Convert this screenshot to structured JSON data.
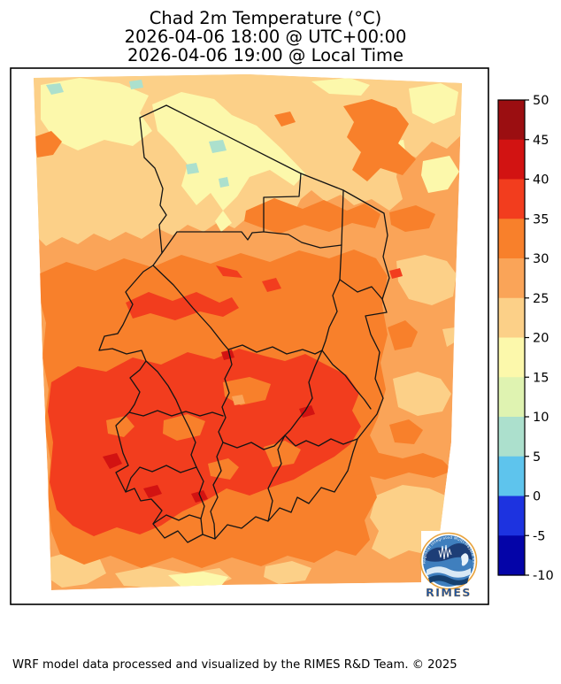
{
  "title": {
    "line1": "Chad 2m Temperature (°C)",
    "line2": "2026-04-06 18:00 @ UTC+00:00",
    "line3": "2026-04-06 19:00 @ Local Time"
  },
  "colorbar": {
    "ticks": [
      "50",
      "45",
      "40",
      "35",
      "30",
      "25",
      "20",
      "15",
      "10",
      "5",
      "0",
      "-5",
      "-10"
    ],
    "segments": [
      {
        "range": "45 to 50",
        "color": "#9B0E11"
      },
      {
        "range": "40 to 45",
        "color": "#D21312"
      },
      {
        "range": "35 to 40",
        "color": "#F23D1E"
      },
      {
        "range": "30 to 35",
        "color": "#F8802B"
      },
      {
        "range": "25 to 30",
        "color": "#FAA458"
      },
      {
        "range": "20 to 25",
        "color": "#FCD088"
      },
      {
        "range": "15 to 20",
        "color": "#FCF8AB"
      },
      {
        "range": "10 to 15",
        "color": "#DFF3B1"
      },
      {
        "range": "5 to 10",
        "color": "#ACE0CD"
      },
      {
        "range": "0 to 5",
        "color": "#5EC4ED"
      },
      {
        "range": "-5 to 0",
        "color": "#1D33E0"
      },
      {
        "range": "-10 to -5",
        "color": "#0404A8"
      }
    ]
  },
  "logo": {
    "text": "RIMES",
    "ring_text": "Regional Integrated Multi-Hazard Early Warning System"
  },
  "footer": {
    "credit": "WRF model data processed and visualized by the RIMES R&D Team. © 2025"
  },
  "chart_data": {
    "type": "heatmap",
    "title": "Chad 2m Temperature (°C)",
    "time_utc": "2026-04-06 18:00 @ UTC+00:00",
    "time_local": "2026-04-06 19:00 @ Local Time",
    "variable": "2m air temperature",
    "units": "°C",
    "colorbar_range": [
      -10,
      50
    ],
    "colorbar_step": 5,
    "legend_position": "right",
    "observed_field_range_c": [
      5,
      45
    ],
    "pattern": "Coolest band 15-25 °C in the far north of the domain with tiny 5-10 °C spots; 25-30 °C across the northeast and east; 30-35 °C over most of central Chad; hottest 35-40 °C with isolated 40-45 °C pockets over the south and southwest; lighter 20-25 °C patches near Lake Chad and the southeast corner."
  }
}
